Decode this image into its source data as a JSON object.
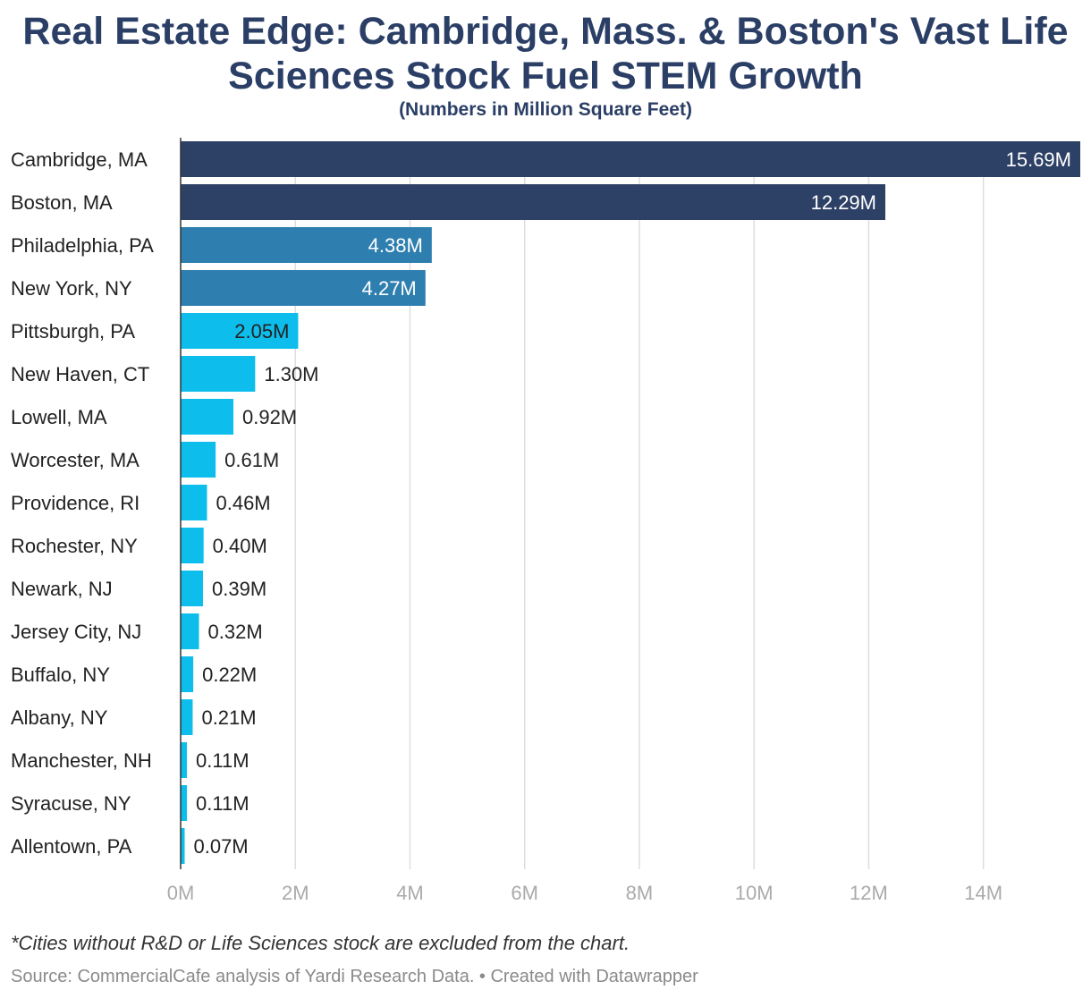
{
  "chart_data": {
    "type": "bar",
    "orientation": "horizontal",
    "title": "Real Estate Edge: Cambridge, Mass. & Boston's Vast Life Sciences Stock Fuel STEM Growth",
    "subtitle": "(Numbers in Million Square Feet)",
    "categories": [
      "Cambridge, MA",
      "Boston, MA",
      "Philadelphia, PA",
      "New York, NY",
      "Pittsburgh, PA",
      "New Haven, CT",
      "Lowell, MA",
      "Worcester, MA",
      "Providence, RI",
      "Rochester, NY",
      "Newark, NJ",
      "Jersey City, NJ",
      "Buffalo, NY",
      "Albany, NY",
      "Manchester, NH",
      "Syracuse, NY",
      "Allentown, PA"
    ],
    "values": [
      15.69,
      12.29,
      4.38,
      4.27,
      2.05,
      1.3,
      0.92,
      0.61,
      0.46,
      0.4,
      0.39,
      0.32,
      0.22,
      0.21,
      0.11,
      0.11,
      0.07
    ],
    "value_labels": [
      "15.69M",
      "12.29M",
      "4.38M",
      "4.27M",
      "2.05M",
      "1.30M",
      "0.92M",
      "0.61M",
      "0.46M",
      "0.40M",
      "0.39M",
      "0.32M",
      "0.22M",
      "0.21M",
      "0.11M",
      "0.11M",
      "0.07M"
    ],
    "xlim": [
      0,
      15.69
    ],
    "x_ticks": [
      0,
      2,
      4,
      6,
      8,
      10,
      12,
      14
    ],
    "x_tick_labels": [
      "0M",
      "2M",
      "4M",
      "6M",
      "8M",
      "10M",
      "12M",
      "14M"
    ],
    "grid": true,
    "colors": {
      "dark": "#2d4066",
      "medium": "#2e7fb0",
      "light": "#0dbdec",
      "grid": "#dddddd",
      "axis": "#333333",
      "tick_text": "#aaaaaa",
      "label_text": "#222222",
      "inside_label_text": "#ffffff"
    }
  },
  "footnote": "*Cities without R&D or Life Sciences stock are excluded from the chart.",
  "source": "Source: CommercialCafe analysis of Yardi Research Data. • Created with Datawrapper"
}
